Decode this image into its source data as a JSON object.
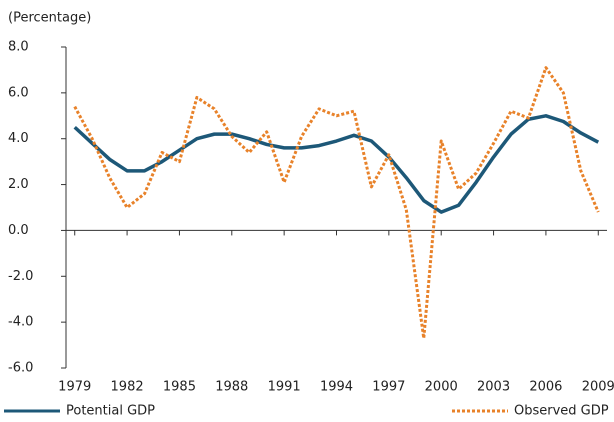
{
  "chart_data": {
    "type": "line",
    "y_label": "(Percentage)",
    "x": [
      1979,
      1980,
      1981,
      1982,
      1983,
      1984,
      1985,
      1986,
      1987,
      1988,
      1989,
      1990,
      1991,
      1992,
      1993,
      1994,
      1995,
      1996,
      1997,
      1998,
      1999,
      2000,
      2001,
      2002,
      2003,
      2004,
      2005,
      2006,
      2007,
      2008,
      2009
    ],
    "series": [
      {
        "name": "Potential GDP",
        "color": "#1d5878",
        "style": "solid",
        "values": [
          4.5,
          3.8,
          3.1,
          2.6,
          2.6,
          3.0,
          3.5,
          4.0,
          4.2,
          4.2,
          4.0,
          3.75,
          3.6,
          3.6,
          3.7,
          3.9,
          4.15,
          3.9,
          3.2,
          2.3,
          1.3,
          0.8,
          1.1,
          2.1,
          3.2,
          4.2,
          4.85,
          5.0,
          4.75,
          4.25,
          3.85
        ]
      },
      {
        "name": "Observed GDP",
        "color": "#e8822a",
        "style": "dotted",
        "values": [
          5.4,
          4.0,
          2.3,
          1.0,
          1.6,
          3.4,
          3.0,
          5.8,
          5.3,
          4.1,
          3.4,
          4.3,
          2.1,
          4.1,
          5.3,
          5.0,
          5.2,
          1.9,
          3.3,
          0.9,
          -4.7,
          3.9,
          1.8,
          2.5,
          3.8,
          5.2,
          4.9,
          7.1,
          6.0,
          2.6,
          0.8
        ]
      }
    ],
    "xlim": [
      1978.5,
      2009.5
    ],
    "xticks": [
      1979,
      1982,
      1985,
      1988,
      1991,
      1994,
      1997,
      2000,
      2003,
      2006,
      2009
    ],
    "ylim": [
      -6,
      8
    ],
    "yticks": [
      {
        "value": -6,
        "label": "-6.0"
      },
      {
        "value": -4,
        "label": "-4.0"
      },
      {
        "value": -2,
        "label": "-2.0"
      },
      {
        "value": 0,
        "label": "0.0"
      },
      {
        "value": 2,
        "label": "2.0"
      },
      {
        "value": 4,
        "label": "4.0"
      },
      {
        "value": 6,
        "label": "6.0"
      },
      {
        "value": 8,
        "label": "8.0"
      }
    ],
    "legend": "bottom"
  }
}
